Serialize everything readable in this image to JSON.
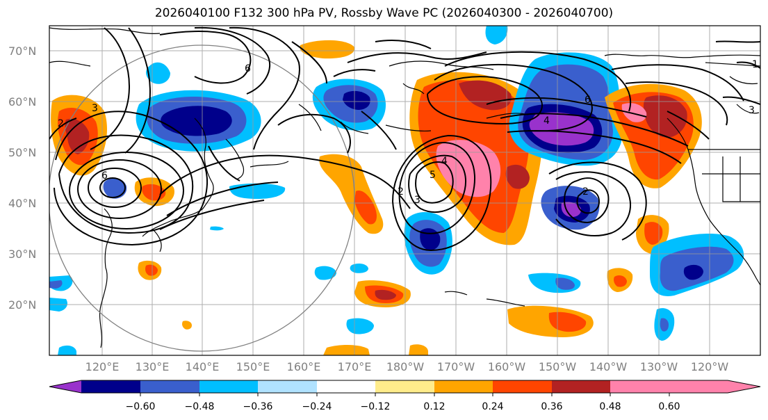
{
  "title": "2026040100 F132 300 hPa PV, Rossby Wave PC (2026040300 - 2026040700)",
  "map": {
    "lat_labels": [
      "70°N",
      "60°N",
      "50°N",
      "40°N",
      "30°N",
      "20°N"
    ],
    "lon_labels": [
      "120°E",
      "130°E",
      "140°E",
      "150°E",
      "160°E",
      "170°E",
      "180°W",
      "170°W",
      "160°W",
      "150°W",
      "140°W",
      "130°W",
      "120°W"
    ],
    "contour_labels": [
      "6",
      "3",
      "2",
      "6",
      "4",
      "5",
      "3",
      "2",
      "6",
      "4",
      "2",
      "3",
      "1"
    ]
  },
  "colorbar": {
    "colors": [
      "#9932cc",
      "#00008b",
      "#3a5fcd",
      "#00bfff",
      "#b0e2ff",
      "#ffffff",
      "#ffec8b",
      "#ffa500",
      "#ff4500",
      "#b22222",
      "#ff82ab"
    ],
    "tick_labels": [
      "−0.60",
      "−0.48",
      "−0.36",
      "−0.24",
      "−0.12",
      "0.12",
      "0.24",
      "0.36",
      "0.48",
      "0.60"
    ]
  }
}
